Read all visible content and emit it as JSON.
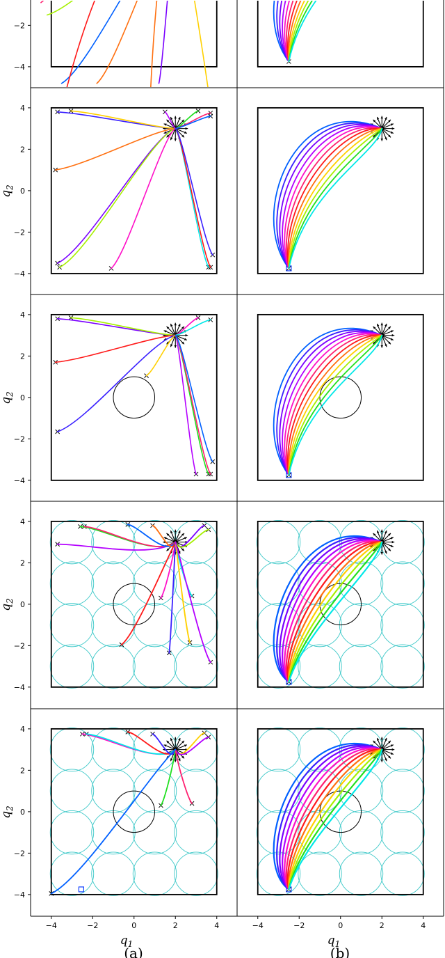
{
  "chart_data": {
    "type": "line",
    "xlabel": "q",
    "xlabel_sub": "1",
    "ylabel": "q",
    "ylabel_sub": "2",
    "xlim": [
      -5,
      5
    ],
    "ylim": [
      -4.5,
      4.5
    ],
    "xticks": [
      -4,
      -2,
      0,
      2,
      4
    ],
    "yticks": [
      -4,
      -2,
      0,
      2,
      4
    ],
    "xtick_labels": [
      "−4",
      "−2",
      "0",
      "2",
      "4"
    ],
    "ytick_labels": [
      "−4",
      "−2",
      "0",
      "2",
      "4"
    ],
    "columns": [
      "(a)",
      "(b)"
    ],
    "target_point": [
      2,
      3
    ],
    "start_point_b": [
      -2.5,
      -3.75
    ],
    "obstacle": {
      "center": [
        0,
        0
      ],
      "radius": 1
    },
    "cyan_circle_grid": {
      "xs": [
        -3,
        -1,
        1,
        3
      ],
      "ys": [
        -3,
        -1,
        1,
        3
      ],
      "radius": 1.05
    },
    "arena": {
      "xmin": -4,
      "xmax": 4,
      "ymin": -4,
      "ymax": 4
    },
    "colors": [
      "#0060ff",
      "#3a20ff",
      "#7a00ff",
      "#b400ff",
      "#ff10c8",
      "#ff2070",
      "#ff1a1a",
      "#ff7010",
      "#ffd000",
      "#a6f000",
      "#20e020",
      "#00e8e8"
    ],
    "panels": [
      {
        "row": 0,
        "col": 0,
        "partial": true,
        "obstacle": false,
        "grid": false,
        "endpoints": []
      },
      {
        "row": 0,
        "col": 1,
        "partial": true,
        "obstacle": false,
        "grid": false,
        "endpoints": [
          [
            -2.5,
            -3.75
          ]
        ]
      },
      {
        "row": 1,
        "col": 0,
        "obstacle": false,
        "grid": false,
        "endpoints": [
          [
            -3.7,
            3.8
          ],
          [
            -3.05,
            3.85
          ],
          [
            1.5,
            3.8
          ],
          [
            3.1,
            3.85
          ],
          [
            3.7,
            3.75
          ],
          [
            3.7,
            3.6
          ],
          [
            -3.8,
            1.0
          ],
          [
            -3.7,
            -3.5
          ],
          [
            -3.6,
            -3.7
          ],
          [
            -1.1,
            -3.75
          ],
          [
            3.6,
            -3.7
          ],
          [
            3.7,
            -3.7
          ],
          [
            3.8,
            -3.1
          ]
        ]
      },
      {
        "row": 1,
        "col": 1,
        "obstacle": false,
        "grid": false,
        "endpoints": [
          [
            -2.5,
            -3.75
          ]
        ]
      },
      {
        "row": 2,
        "col": 0,
        "obstacle": true,
        "grid": false,
        "endpoints": [
          [
            -3.7,
            3.8
          ],
          [
            -3.05,
            3.85
          ],
          [
            3.1,
            3.85
          ],
          [
            3.7,
            3.75
          ],
          [
            -3.8,
            1.7
          ],
          [
            -3.7,
            -1.65
          ],
          [
            0.6,
            1.05
          ],
          [
            3.0,
            -3.7
          ],
          [
            3.6,
            -3.7
          ],
          [
            3.7,
            -3.7
          ],
          [
            3.8,
            -3.1
          ]
        ]
      },
      {
        "row": 2,
        "col": 1,
        "obstacle": true,
        "grid": false,
        "endpoints": [
          [
            -2.5,
            -3.75
          ]
        ]
      },
      {
        "row": 3,
        "col": 0,
        "obstacle": true,
        "grid": true,
        "endpoints": [
          [
            -3.7,
            2.9
          ],
          [
            -2.6,
            3.75
          ],
          [
            -2.4,
            3.75
          ],
          [
            -0.3,
            3.85
          ],
          [
            0.9,
            3.8
          ],
          [
            3.4,
            3.8
          ],
          [
            3.6,
            3.6
          ],
          [
            1.3,
            0.3
          ],
          [
            2.8,
            0.4
          ],
          [
            -0.6,
            -1.95
          ],
          [
            1.7,
            -2.35
          ],
          [
            2.7,
            -1.85
          ],
          [
            3.7,
            -2.8
          ]
        ]
      },
      {
        "row": 3,
        "col": 1,
        "obstacle": true,
        "grid": true,
        "endpoints": [
          [
            -2.5,
            -3.75
          ]
        ]
      },
      {
        "row": 4,
        "col": 0,
        "obstacle": true,
        "grid": true,
        "endpoints": [
          [
            -2.5,
            3.75
          ],
          [
            -2.3,
            3.75
          ],
          [
            -0.3,
            3.85
          ],
          [
            0.9,
            3.75
          ],
          [
            3.4,
            3.8
          ],
          [
            3.6,
            3.6
          ],
          [
            1.3,
            0.3
          ],
          [
            2.8,
            0.4
          ],
          [
            -4.0,
            -3.95
          ]
        ],
        "square_marker": [
          -2.55,
          -3.75
        ]
      },
      {
        "row": 4,
        "col": 1,
        "obstacle": true,
        "grid": true,
        "endpoints": [
          [
            -2.5,
            -3.75
          ]
        ]
      }
    ]
  }
}
